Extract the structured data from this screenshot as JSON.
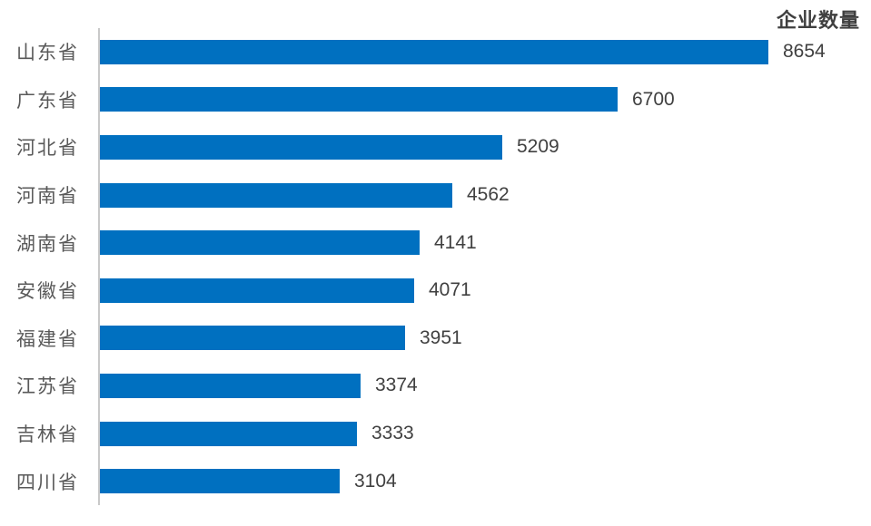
{
  "chart_data": {
    "type": "bar",
    "orientation": "horizontal",
    "title": "企业数量",
    "categories": [
      "山东省",
      "广东省",
      "河北省",
      "河南省",
      "湖南省",
      "安徽省",
      "福建省",
      "江苏省",
      "吉林省",
      "四川省"
    ],
    "values": [
      8654,
      6700,
      5209,
      4562,
      4141,
      4071,
      3951,
      3374,
      3333,
      3104
    ],
    "xlim": [
      0,
      8654
    ],
    "data_labels": true,
    "grid": false,
    "legend": false,
    "colors": {
      "bar": "#0070C0",
      "axis_line": "#c9c9c9",
      "category_label": "#595959",
      "value_label": "#404040",
      "title": "#3f3f3f",
      "background": "#ffffff"
    }
  }
}
